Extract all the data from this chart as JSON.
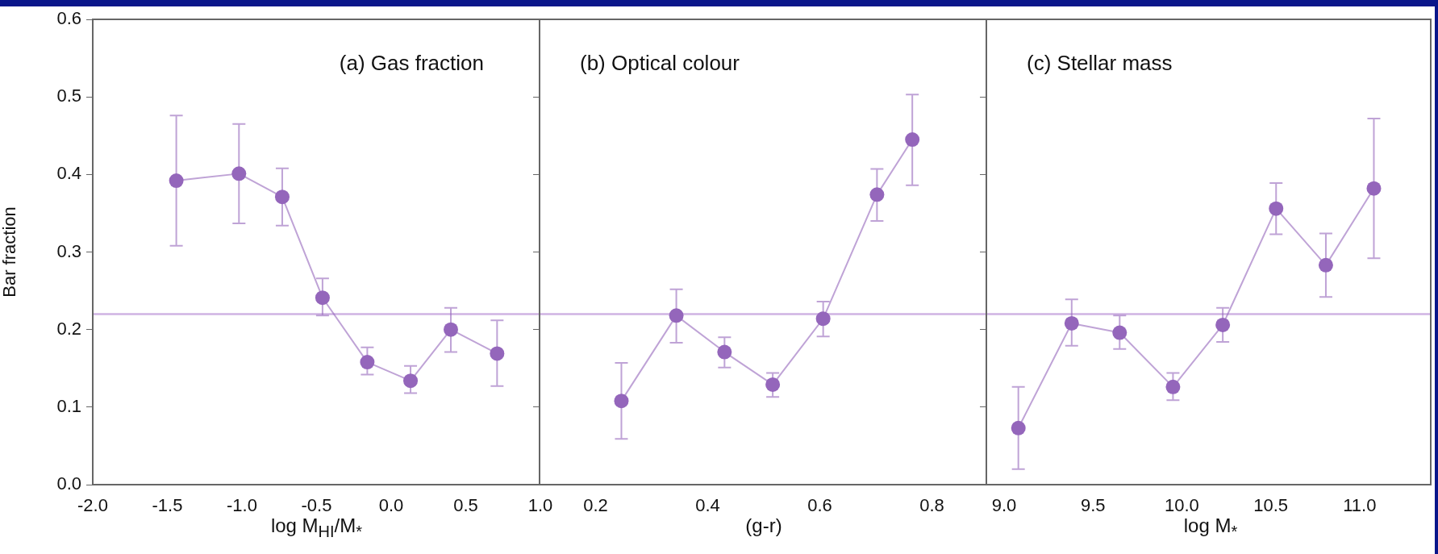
{
  "chart_data": [
    {
      "type": "line",
      "title": "(a) Gas fraction",
      "xlabel": "log M$_{HI}$/M$_{*}$",
      "ylabel": "Bar fraction",
      "marker": "circle",
      "xlim": [
        -2.0,
        1.0
      ],
      "xticks": [
        {
          "value": -2.0,
          "label": "-2.0"
        },
        {
          "value": -1.5,
          "label": "-1.5"
        },
        {
          "value": -1.0,
          "label": "-1.0"
        },
        {
          "value": -0.5,
          "label": "-0.5"
        },
        {
          "value": 0.0,
          "label": "0.0"
        },
        {
          "value": 0.5,
          "label": "0.5"
        },
        {
          "value": 1.0,
          "label": "1.0"
        }
      ],
      "ylim": [
        0,
        0.6
      ],
      "yticks": [
        {
          "value": 0,
          "label": "0.0"
        },
        0.1,
        0.2,
        0.3,
        0.4,
        0.5,
        0.6
      ],
      "x": [
        -1.44,
        -1.02,
        -0.73,
        -0.46,
        -0.16,
        0.13,
        0.4,
        0.71
      ],
      "series": [
        {
          "color": "#9466bb",
          "values": [
            0.392,
            0.401,
            0.371,
            0.241,
            0.158,
            0.134,
            0.2,
            0.169
          ],
          "errors": [
            [
              0.308,
              0.476
            ],
            [
              0.337,
              0.465
            ],
            [
              0.334,
              0.408
            ],
            [
              0.218,
              0.266
            ],
            [
              0.142,
              0.177
            ],
            [
              0.118,
              0.153
            ],
            [
              0.171,
              0.228
            ],
            [
              0.127,
              0.212
            ]
          ]
        }
      ],
      "ref_lines": [
        {
          "axis": "y",
          "value": 0.22,
          "color": "#cfb3e3"
        }
      ]
    },
    {
      "type": "line",
      "title": "(b) Optical colour",
      "xlabel": "(g-r)",
      "marker": "circle",
      "tick_labels": "x",
      "xlim": [
        0.1,
        0.9
      ],
      "xticks": [
        0.2,
        0.4,
        0.6,
        0.8
      ],
      "ylim": [
        0,
        0.6
      ],
      "yticks": [
        0,
        0.1,
        0.2,
        0.3,
        0.4,
        0.5,
        0.6
      ],
      "x": [
        0.246,
        0.344,
        0.43,
        0.516,
        0.606,
        0.702,
        0.765
      ],
      "series": [
        {
          "color": "#9466bb",
          "values": [
            0.108,
            0.218,
            0.171,
            0.129,
            0.214,
            0.374,
            0.445
          ],
          "errors": [
            [
              0.059,
              0.157
            ],
            [
              0.183,
              0.252
            ],
            [
              0.151,
              0.19
            ],
            [
              0.113,
              0.144
            ],
            [
              0.191,
              0.236
            ],
            [
              0.34,
              0.407
            ],
            [
              0.386,
              0.503
            ]
          ]
        }
      ],
      "ref_lines": [
        {
          "axis": "y",
          "value": 0.22,
          "color": "#cfb3e3"
        }
      ]
    },
    {
      "type": "line",
      "title": "(c) Stellar mass",
      "xlabel": "log M$_{*}$",
      "marker": "circle",
      "tick_labels": "x",
      "xlim": [
        8.9,
        11.4
      ],
      "xticks": [
        {
          "value": 9.0,
          "label": "9.0"
        },
        9.5,
        {
          "value": 10.0,
          "label": "10.0"
        },
        10.5,
        {
          "value": 11.0,
          "label": "11.0"
        }
      ],
      "ylim": [
        0,
        0.6
      ],
      "yticks": [
        0,
        0.1,
        0.2,
        0.3,
        0.4,
        0.5,
        0.6
      ],
      "x": [
        9.08,
        9.38,
        9.65,
        9.95,
        10.23,
        10.53,
        10.81,
        11.08
      ],
      "series": [
        {
          "color": "#9466bb",
          "values": [
            0.073,
            0.208,
            0.196,
            0.126,
            0.206,
            0.356,
            0.283,
            0.382
          ],
          "errors": [
            [
              0.02,
              0.126
            ],
            [
              0.179,
              0.239
            ],
            [
              0.175,
              0.218
            ],
            [
              0.109,
              0.144
            ],
            [
              0.184,
              0.228
            ],
            [
              0.323,
              0.389
            ],
            [
              0.242,
              0.324
            ],
            [
              0.292,
              0.472
            ]
          ]
        }
      ],
      "ref_lines": [
        {
          "axis": "y",
          "value": 0.22,
          "color": "#cfb3e3"
        }
      ]
    }
  ]
}
